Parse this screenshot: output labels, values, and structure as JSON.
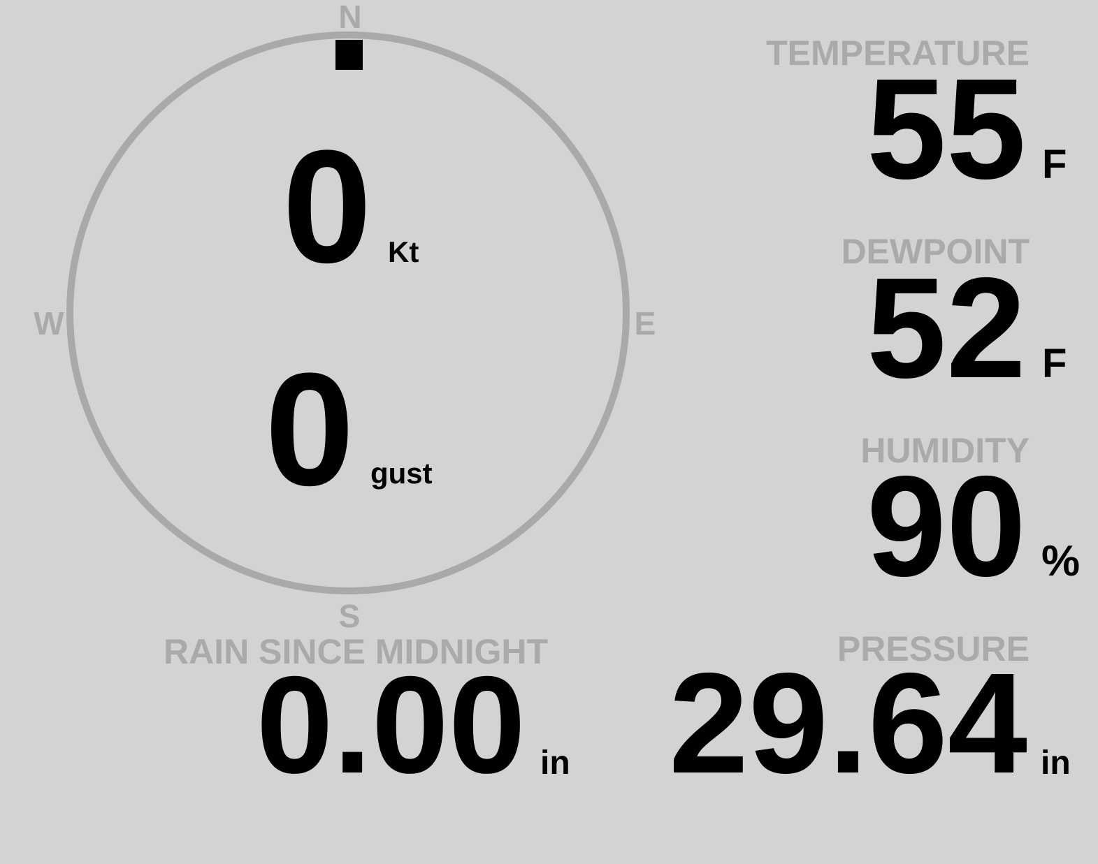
{
  "compass": {
    "north": "N",
    "south": "S",
    "east": "E",
    "west": "W",
    "direction_deg": 0,
    "ring_color": "#a9a9a9",
    "indicator_color": "#000000"
  },
  "wind": {
    "speed": "0",
    "speed_unit": "Kt",
    "gust": "0",
    "gust_unit": "gust"
  },
  "temperature": {
    "label": "TEMPERATURE",
    "value": "55",
    "unit": "F"
  },
  "dewpoint": {
    "label": "DEWPOINT",
    "value": "52",
    "unit": "F"
  },
  "humidity": {
    "label": "HUMIDITY",
    "value": "90",
    "unit": "%"
  },
  "rain": {
    "label": "RAIN SINCE MIDNIGHT",
    "value": "0.00",
    "unit": "in"
  },
  "pressure": {
    "label": "PRESSURE",
    "value": "29.64",
    "unit": "in"
  },
  "colors": {
    "background": "#d3d3d3",
    "label": "#aaaaaa",
    "value": "#000000"
  }
}
